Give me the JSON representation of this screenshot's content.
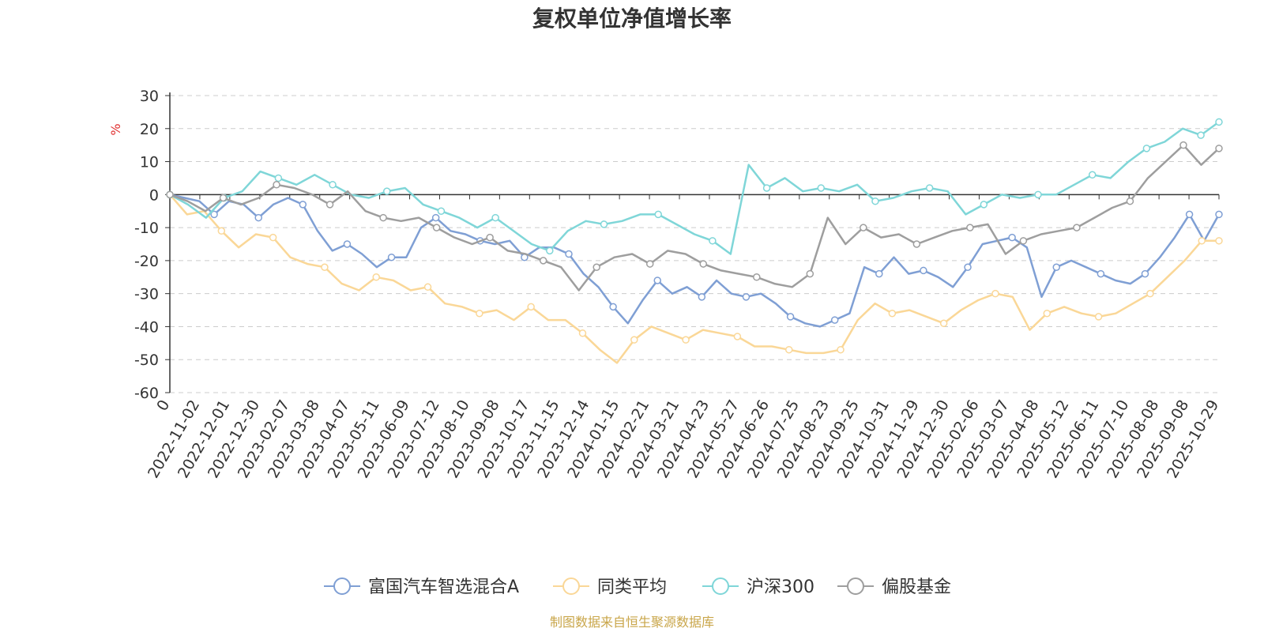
{
  "chart_data": {
    "type": "line",
    "title": "复权单位净值增长率",
    "ylabel": "%",
    "ylim": [
      -60,
      30
    ],
    "yticks": [
      30,
      20,
      10,
      0,
      -10,
      -20,
      -30,
      -40,
      -50,
      -60
    ],
    "grid": true,
    "legend_position": "bottom",
    "x_tick_labels": [
      "0",
      "2022-11-02",
      "2022-12-01",
      "2022-12-30",
      "2023-02-07",
      "2023-03-08",
      "2023-04-07",
      "2023-05-11",
      "2023-06-09",
      "2023-07-12",
      "2023-08-10",
      "2023-09-08",
      "2023-10-17",
      "2023-11-15",
      "2023-12-14",
      "2024-01-15",
      "2024-02-21",
      "2024-03-21",
      "2024-04-23",
      "2024-05-27",
      "2024-06-26",
      "2024-07-25",
      "2024-08-23",
      "2024-09-25",
      "2024-10-31",
      "2024-11-29",
      "2024-12-30",
      "2025-02-06",
      "2025-03-07",
      "2025-04-08",
      "2025-05-12",
      "2025-06-11",
      "2025-07-10",
      "2025-08-08",
      "2025-09-08",
      "2025-10-29"
    ],
    "series": [
      {
        "name": "富国汽车智选混合A",
        "color": "#7f9fd4",
        "values": [
          0,
          -1,
          -2,
          -6,
          -2,
          -3,
          -7,
          -3,
          -1,
          -3,
          -11,
          -17,
          -15,
          -18,
          -22,
          -19,
          -19,
          -10,
          -7,
          -11,
          -12,
          -14,
          -15,
          -14,
          -19,
          -16,
          -16,
          -18,
          -24,
          -28,
          -34,
          -39,
          -32,
          -26,
          -30,
          -28,
          -31,
          -26,
          -30,
          -31,
          -30,
          -33,
          -37,
          -39,
          -40,
          -38,
          -36,
          -22,
          -24,
          -19,
          -24,
          -23,
          -25,
          -28,
          -22,
          -15,
          -14,
          -13,
          -16,
          -31,
          -22,
          -20,
          -22,
          -24,
          -26,
          -27,
          -24,
          -19,
          -13,
          -6,
          -14,
          -6
        ]
      },
      {
        "name": "同类平均",
        "color": "#fad797",
        "values": [
          0,
          -6,
          -5,
          -11,
          -16,
          -12,
          -13,
          -19,
          -21,
          -22,
          -27,
          -29,
          -25,
          -26,
          -29,
          -28,
          -33,
          -34,
          -36,
          -35,
          -38,
          -34,
          -38,
          -38,
          -42,
          -47,
          -51,
          -44,
          -40,
          -42,
          -44,
          -41,
          -42,
          -43,
          -46,
          -46,
          -47,
          -48,
          -48,
          -47,
          -38,
          -33,
          -36,
          -35,
          -37,
          -39,
          -35,
          -32,
          -30,
          -31,
          -41,
          -36,
          -34,
          -36,
          -37,
          -36,
          -33,
          -30,
          -25,
          -20,
          -14,
          -14
        ]
      },
      {
        "name": "沪深300",
        "color": "#7fd6d8",
        "values": [
          0,
          -3,
          -7,
          -1,
          1,
          7,
          5,
          3,
          6,
          3,
          0,
          -1,
          1,
          2,
          -3,
          -5,
          -7,
          -10,
          -7,
          -11,
          -15,
          -17,
          -11,
          -8,
          -9,
          -8,
          -6,
          -6,
          -9,
          -12,
          -14,
          -18,
          9,
          2,
          5,
          1,
          2,
          1,
          3,
          -2,
          -1,
          1,
          2,
          1,
          -6,
          -3,
          0,
          -1,
          0,
          0,
          3,
          6,
          5,
          10,
          14,
          16,
          20,
          18,
          22
        ]
      },
      {
        "name": "偏股基金",
        "color": "#9e9e9e",
        "values": [
          0,
          -2,
          -5,
          -1,
          -3,
          -1,
          3,
          2,
          0,
          -3,
          1,
          -5,
          -7,
          -8,
          -7,
          -10,
          -13,
          -15,
          -13,
          -17,
          -18,
          -20,
          -22,
          -29,
          -22,
          -19,
          -18,
          -21,
          -17,
          -18,
          -21,
          -23,
          -24,
          -25,
          -27,
          -28,
          -24,
          -7,
          -15,
          -10,
          -13,
          -12,
          -15,
          -13,
          -11,
          -10,
          -9,
          -18,
          -14,
          -12,
          -11,
          -10,
          -7,
          -4,
          -2,
          5,
          10,
          15,
          9,
          14
        ]
      }
    ],
    "source_note": "制图数据来自恒生聚源数据库"
  }
}
